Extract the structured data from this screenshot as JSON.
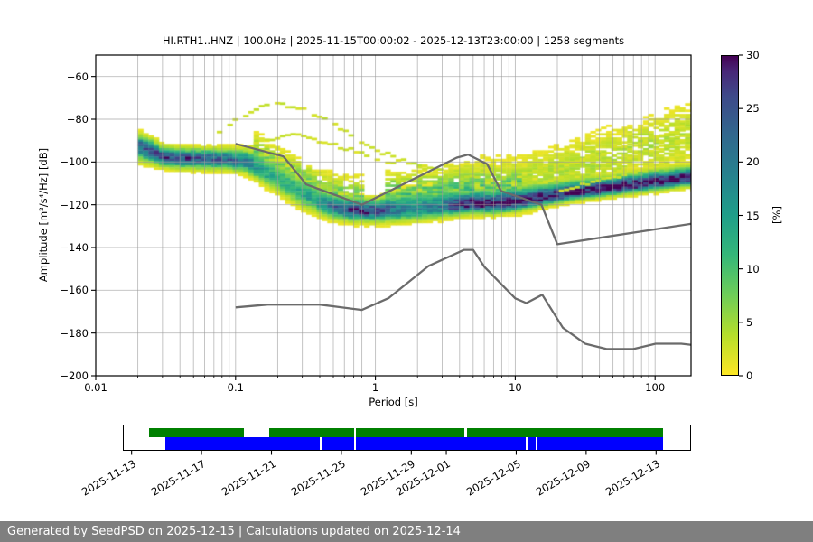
{
  "title": "HI.RTH1..HNZ | 100.0Hz | 2025-11-15T00:00:02 - 2025-12-13T23:00:00 | 1258 segments",
  "footer": {
    "text": "Generated by SeedPSD on 2025-12-15 | Calculations updated on 2025-12-14",
    "bg": "#7f7f7f",
    "color": "#ffffff"
  },
  "chart_data": {
    "type": "heatmap",
    "subtype": "ppsd-probabilistic-power-spectral-density",
    "meta": {
      "stream": "HI.RTH1..HNZ",
      "sample_rate": "100.0Hz",
      "start": "2025-11-15T00:00:02",
      "end": "2025-12-13T23:00:00",
      "segments": 1258
    },
    "xlabel": "Period [s]",
    "ylabel": "Amplitude [m²/s⁴/Hz] [dB]",
    "xscale": "log",
    "xlim": [
      0.01,
      181
    ],
    "ylim": [
      -200,
      -50
    ],
    "grid": true,
    "x_ticks": [
      {
        "v": 0.01,
        "label": "0.01"
      },
      {
        "v": 0.1,
        "label": "0.1"
      },
      {
        "v": 1,
        "label": "1"
      },
      {
        "v": 10,
        "label": "10"
      },
      {
        "v": 100,
        "label": "100"
      }
    ],
    "y_ticks": [
      {
        "v": -60,
        "label": "−60"
      },
      {
        "v": -80,
        "label": "−80"
      },
      {
        "v": -100,
        "label": "−100"
      },
      {
        "v": -120,
        "label": "−120"
      },
      {
        "v": -140,
        "label": "−140"
      },
      {
        "v": -160,
        "label": "−160"
      },
      {
        "v": -180,
        "label": "−180"
      },
      {
        "v": -200,
        "label": "−200"
      }
    ],
    "colorbar": {
      "label": "[%]",
      "min": 0,
      "max": 30,
      "ticks": [
        {
          "v": 0,
          "label": "0"
        },
        {
          "v": 5,
          "label": "5"
        },
        {
          "v": 10,
          "label": "10"
        },
        {
          "v": 15,
          "label": "15"
        },
        {
          "v": 20,
          "label": "20"
        },
        {
          "v": 25,
          "label": "25"
        },
        {
          "v": 30,
          "label": "30"
        }
      ],
      "stops": [
        [
          0,
          "#fde725"
        ],
        [
          0.125,
          "#b5de2b"
        ],
        [
          0.25,
          "#6ece58"
        ],
        [
          0.375,
          "#35b779"
        ],
        [
          0.5,
          "#1f9e89"
        ],
        [
          0.625,
          "#26828e"
        ],
        [
          0.75,
          "#31688e"
        ],
        [
          0.875,
          "#3e4989"
        ],
        [
          0.95,
          "#482878"
        ],
        [
          1,
          "#440154"
        ]
      ]
    },
    "histogram_model": {
      "comment": "approximation of PPSD density: mode ridge (period s, dB), peak probability %, lower/upper sigma dB",
      "periods": [
        0.02,
        0.025,
        0.03,
        0.04,
        0.06,
        0.09,
        0.12,
        0.15,
        0.2,
        0.25,
        0.3,
        0.4,
        0.5,
        0.7,
        1.0,
        1.5,
        2.0,
        3.0,
        4.0,
        5.0,
        7.0,
        10,
        14,
        20,
        30,
        50,
        80,
        120,
        181
      ],
      "mode_db": [
        -92.5,
        -95.0,
        -97.5,
        -98.3,
        -98.6,
        -99.0,
        -100.0,
        -103.5,
        -108.0,
        -112.0,
        -115.0,
        -119.0,
        -121.3,
        -122.5,
        -122.8,
        -122.6,
        -122.2,
        -121.3,
        -120.3,
        -119.7,
        -119.8,
        -119.0,
        -117.3,
        -115.5,
        -113.8,
        -112.0,
        -110.3,
        -109.0,
        -107.5
      ],
      "peak_pct": [
        22,
        25,
        26,
        25,
        24,
        22,
        20,
        15,
        12,
        12,
        13,
        16,
        22,
        27,
        27,
        19,
        17,
        20,
        28,
        29,
        29,
        30,
        30,
        30,
        30,
        30,
        30,
        30,
        30
      ],
      "sigma_lo": [
        3.5,
        3.0,
        2.5,
        2.5,
        2.5,
        2.5,
        2.8,
        3.2,
        3.5,
        3.5,
        3.5,
        3.0,
        2.8,
        2.8,
        2.8,
        2.8,
        2.8,
        2.6,
        2.4,
        2.4,
        2.4,
        2.2,
        2.2,
        2.0,
        2.0,
        2.0,
        2.0,
        2.0,
        2.0
      ],
      "sigma_hi": [
        3.2,
        3.0,
        2.6,
        2.6,
        2.6,
        2.8,
        3.2,
        4.2,
        5.0,
        5.0,
        4.6,
        4.0,
        3.4,
        3.0,
        2.8,
        4.6,
        5.0,
        4.4,
        3.6,
        3.6,
        3.8,
        3.8,
        3.6,
        3.2,
        3.0,
        3.0,
        3.0,
        3.0,
        3.0
      ],
      "tails": [
        {
          "pmin": 1.2,
          "pmax": 11,
          "amp": 8,
          "off0": 7,
          "off1": 7,
          "sig": 5.5
        },
        {
          "pmin": 0.13,
          "pmax": 0.8,
          "amp": 6,
          "off0": 6,
          "off1": 6,
          "sig": 5
        },
        {
          "pmin": 3,
          "pmax": 30,
          "amp": 3,
          "off0": 12,
          "off1": 12,
          "sig": 6
        },
        {
          "pmin": 10,
          "pmax": 181,
          "amp": 3.2,
          "off0": 6,
          "off1": 21,
          "sig": 8
        }
      ],
      "outlier_traces": [
        {
          "amp": 2.6,
          "pts": [
            [
              0.065,
              -90
            ],
            [
              0.085,
              -84
            ],
            [
              0.11,
              -78.5
            ],
            [
              0.15,
              -74.5
            ],
            [
              0.2,
              -73
            ],
            [
              0.27,
              -74.5
            ],
            [
              0.36,
              -77.5
            ],
            [
              0.5,
              -82
            ],
            [
              0.7,
              -88
            ],
            [
              1.0,
              -94
            ],
            [
              1.5,
              -99
            ],
            [
              2.2,
              -102
            ],
            [
              3.2,
              -104.5
            ],
            [
              5.0,
              -107
            ],
            [
              7.5,
              -109.5
            ]
          ]
        },
        {
          "amp": 2.2,
          "pts": [
            [
              0.1,
              -95
            ],
            [
              0.14,
              -91
            ],
            [
              0.2,
              -88.5
            ],
            [
              0.27,
              -87.5
            ],
            [
              0.38,
              -89.5
            ],
            [
              0.55,
              -92.5
            ],
            [
              0.8,
              -96
            ],
            [
              1.2,
              -99.5
            ],
            [
              1.8,
              -101.8
            ],
            [
              2.6,
              -103.5
            ]
          ]
        },
        {
          "amp": 2.4,
          "pts": [
            [
              11,
              -109
            ],
            [
              18,
              -104
            ],
            [
              30,
              -99
            ],
            [
              55,
              -94
            ],
            [
              100,
              -89
            ],
            [
              150,
              -85.5
            ],
            [
              181,
              -84
            ]
          ]
        },
        {
          "amp": 2.4,
          "pts": [
            [
              14,
              -111
            ],
            [
              25,
              -106
            ],
            [
              45,
              -101
            ],
            [
              85,
              -96
            ],
            [
              140,
              -91.5
            ],
            [
              181,
              -89.5
            ]
          ]
        },
        {
          "amp": 2.4,
          "pts": [
            [
              20,
              -114
            ],
            [
              40,
              -109
            ],
            [
              80,
              -104
            ],
            [
              140,
              -99
            ],
            [
              181,
              -96.5
            ]
          ]
        },
        {
          "amp": 2.4,
          "pts": [
            [
              12,
              -105
            ],
            [
              20,
              -101
            ],
            [
              33,
              -98.5
            ],
            [
              50,
              -101
            ],
            [
              75,
              -97
            ],
            [
              110,
              -93
            ],
            [
              150,
              -95
            ],
            [
              181,
              -92
            ]
          ]
        },
        {
          "amp": 2.4,
          "pts": [
            [
              28,
              -93
            ],
            [
              40,
              -90.5
            ],
            [
              55,
              -92.5
            ],
            [
              75,
              -88.5
            ],
            [
              100,
              -91
            ],
            [
              130,
              -87
            ],
            [
              160,
              -88.5
            ],
            [
              181,
              -86
            ]
          ]
        }
      ]
    },
    "noise_models": {
      "color": "#6b6b6b",
      "nhnm": [
        [
          0.1,
          -91.5
        ],
        [
          0.22,
          -97.4
        ],
        [
          0.32,
          -110.5
        ],
        [
          0.8,
          -120.0
        ],
        [
          3.8,
          -98.0
        ],
        [
          4.6,
          -96.5
        ],
        [
          6.3,
          -101.0
        ],
        [
          7.9,
          -113.5
        ],
        [
          15.4,
          -120.0
        ],
        [
          20.0,
          -138.5
        ],
        [
          354.8,
          -126.0
        ]
      ],
      "nlnm": [
        [
          0.1,
          -168.0
        ],
        [
          0.17,
          -166.7
        ],
        [
          0.4,
          -166.7
        ],
        [
          0.8,
          -169.2
        ],
        [
          1.24,
          -163.7
        ],
        [
          2.4,
          -148.6
        ],
        [
          4.3,
          -141.1
        ],
        [
          5.0,
          -141.1
        ],
        [
          6.0,
          -149.0
        ],
        [
          10.0,
          -163.8
        ],
        [
          12.0,
          -166.0
        ],
        [
          15.6,
          -162.1
        ],
        [
          21.9,
          -177.5
        ],
        [
          31.6,
          -185.0
        ],
        [
          45.0,
          -187.5
        ],
        [
          70.0,
          -187.5
        ],
        [
          101.0,
          -185.0
        ],
        [
          154.0,
          -185.0
        ],
        [
          328.0,
          -187.5
        ]
      ]
    }
  },
  "timeline": {
    "axis_days_total": 32.5,
    "rows": [
      {
        "name": "coverage-green",
        "color": "#008000",
        "segments_days": [
          [
            1.46,
            6.87
          ],
          [
            8.36,
            13.21
          ],
          [
            13.33,
            19.55
          ],
          [
            19.68,
            30.94
          ]
        ]
      },
      {
        "name": "coverage-blue",
        "color": "#0000ff",
        "segments_days": [
          [
            2.41,
            11.25
          ],
          [
            11.35,
            13.21
          ],
          [
            13.33,
            23.09
          ],
          [
            23.19,
            23.66
          ],
          [
            23.75,
            30.94
          ]
        ]
      }
    ],
    "ticks": [
      {
        "label": "2025-11-13",
        "day": 0.5
      },
      {
        "label": "2025-11-17",
        "day": 4.5
      },
      {
        "label": "2025-11-21",
        "day": 8.5
      },
      {
        "label": "2025-11-25",
        "day": 12.5
      },
      {
        "label": "2025-11-29",
        "day": 16.5
      },
      {
        "label": "2025-12-01",
        "day": 18.5
      },
      {
        "label": "2025-12-05",
        "day": 22.5
      },
      {
        "label": "2025-12-09",
        "day": 26.5
      },
      {
        "label": "2025-12-13",
        "day": 30.5
      }
    ]
  }
}
